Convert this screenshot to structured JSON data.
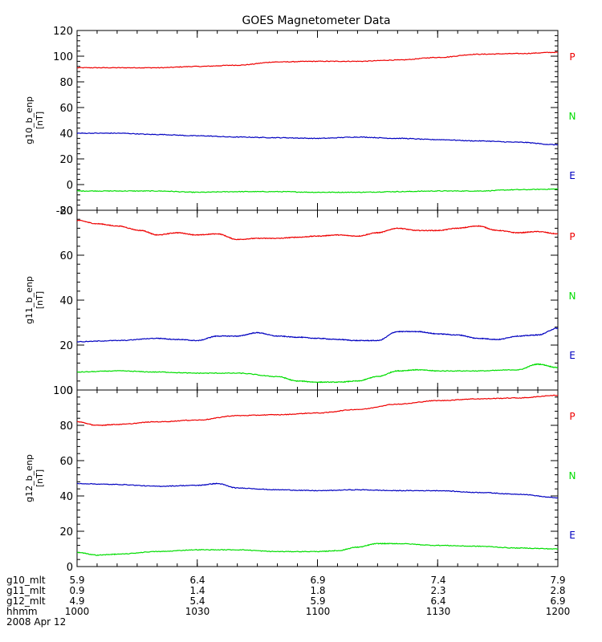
{
  "title": "GOES Magnetometer Data",
  "colors": {
    "P": "#ee0000",
    "N": "#00dd00",
    "E": "#0000c0",
    "axis": "#000000",
    "bg": "#ffffff"
  },
  "chart_data": [
    {
      "type": "line",
      "ylabel": "g10_b_enp",
      "yunit": "[nT]",
      "ylim": [
        -20,
        120
      ],
      "yticks": [
        "-20",
        "0",
        "20",
        "40",
        "60",
        "80",
        "100",
        "120"
      ],
      "xlim": [
        0,
        120
      ],
      "series": [
        {
          "name": "P",
          "x": [
            0,
            10,
            20,
            30,
            40,
            50,
            60,
            70,
            80,
            90,
            100,
            110,
            120
          ],
          "values": [
            91,
            91,
            91,
            92,
            93,
            95.5,
            96,
            96,
            97,
            99,
            101.5,
            102,
            103
          ]
        },
        {
          "name": "N",
          "x": [
            0,
            10,
            20,
            30,
            40,
            50,
            60,
            70,
            80,
            90,
            100,
            110,
            120
          ],
          "values": [
            -5,
            -5,
            -5,
            -6,
            -5.5,
            -5.5,
            -6,
            -6,
            -5.5,
            -5,
            -5,
            -4,
            -3.5
          ]
        },
        {
          "name": "E",
          "x": [
            0,
            10,
            20,
            30,
            40,
            50,
            60,
            70,
            80,
            90,
            100,
            110,
            120
          ],
          "values": [
            40,
            40,
            39,
            38,
            37,
            36.5,
            36,
            37,
            36,
            35,
            34,
            33,
            31
          ]
        }
      ]
    },
    {
      "type": "line",
      "ylabel": "g11_b_enp",
      "yunit": "[nT]",
      "ylim": [
        0,
        80
      ],
      "yticks": [
        "0",
        "20",
        "40",
        "60",
        "80"
      ],
      "xlim": [
        0,
        120
      ],
      "series": [
        {
          "name": "P",
          "x": [
            0,
            5,
            10,
            16,
            20,
            25,
            30,
            35,
            40,
            45,
            50,
            55,
            60,
            65,
            70,
            75,
            80,
            85,
            90,
            95,
            100,
            105,
            110,
            115,
            120
          ],
          "values": [
            75.5,
            74,
            73,
            71,
            69,
            70,
            69,
            69.5,
            67,
            67.5,
            67.5,
            68,
            68.5,
            69,
            68.5,
            70,
            72,
            71,
            71,
            72,
            73,
            71,
            70,
            70.5,
            69.5
          ]
        },
        {
          "name": "N",
          "x": [
            0,
            10,
            20,
            30,
            40,
            50,
            55,
            60,
            65,
            70,
            75,
            80,
            85,
            90,
            100,
            110,
            115,
            120
          ],
          "values": [
            8,
            8.5,
            8,
            7.5,
            7.5,
            6,
            4,
            3.5,
            3.5,
            4,
            6,
            8.5,
            9,
            8.5,
            8.5,
            9,
            11.5,
            10
          ]
        },
        {
          "name": "E",
          "x": [
            0,
            10,
            20,
            25,
            30,
            35,
            40,
            45,
            50,
            55,
            60,
            65,
            70,
            75,
            80,
            85,
            90,
            95,
            100,
            105,
            110,
            115,
            120
          ],
          "values": [
            21.5,
            22,
            23,
            22.5,
            22,
            24,
            24,
            25.5,
            24,
            23.5,
            23,
            22.5,
            22,
            22,
            26,
            26,
            25,
            24.5,
            23,
            22.5,
            24,
            24.5,
            27.5
          ]
        }
      ]
    },
    {
      "type": "line",
      "ylabel": "g12_b_enp",
      "yunit": "[nT]",
      "ylim": [
        0,
        100
      ],
      "yticks": [
        "0",
        "20",
        "40",
        "60",
        "80",
        "100"
      ],
      "xlim": [
        0,
        120
      ],
      "series": [
        {
          "name": "P",
          "x": [
            0,
            5,
            10,
            20,
            30,
            40,
            50,
            60,
            70,
            80,
            90,
            100,
            110,
            120
          ],
          "values": [
            82,
            80,
            80.5,
            82,
            83,
            85.5,
            86,
            87,
            89,
            92,
            94,
            95,
            95.5,
            97
          ]
        },
        {
          "name": "N",
          "x": [
            0,
            5,
            10,
            20,
            30,
            40,
            50,
            60,
            65,
            70,
            75,
            80,
            90,
            100,
            110,
            120
          ],
          "values": [
            8,
            6.5,
            7,
            8.5,
            9.5,
            9.5,
            8.5,
            8.5,
            9,
            11,
            13,
            13,
            12,
            11.5,
            10.5,
            10
          ]
        },
        {
          "name": "E",
          "x": [
            0,
            10,
            20,
            30,
            35,
            40,
            50,
            60,
            70,
            80,
            90,
            100,
            110,
            120
          ],
          "values": [
            47,
            46.5,
            45.5,
            46,
            47,
            44.5,
            43.5,
            43,
            43.5,
            43,
            43,
            42,
            41,
            39
          ]
        }
      ]
    }
  ],
  "x_axis": {
    "tick_labels": [
      {
        "name": "g10_mlt",
        "values": [
          "5.9",
          "6.4",
          "6.9",
          "7.4",
          "7.9"
        ]
      },
      {
        "name": "g11_mlt",
        "values": [
          "0.9",
          "1.4",
          "1.8",
          "2.3",
          "2.8"
        ]
      },
      {
        "name": "g12_mlt",
        "values": [
          "4.9",
          "5.4",
          "5.9",
          "6.4",
          "6.9"
        ]
      },
      {
        "name": "hhmm",
        "values": [
          "1000",
          "1030",
          "1100",
          "1130",
          "1200"
        ]
      }
    ],
    "date": "2008 Apr 12"
  }
}
